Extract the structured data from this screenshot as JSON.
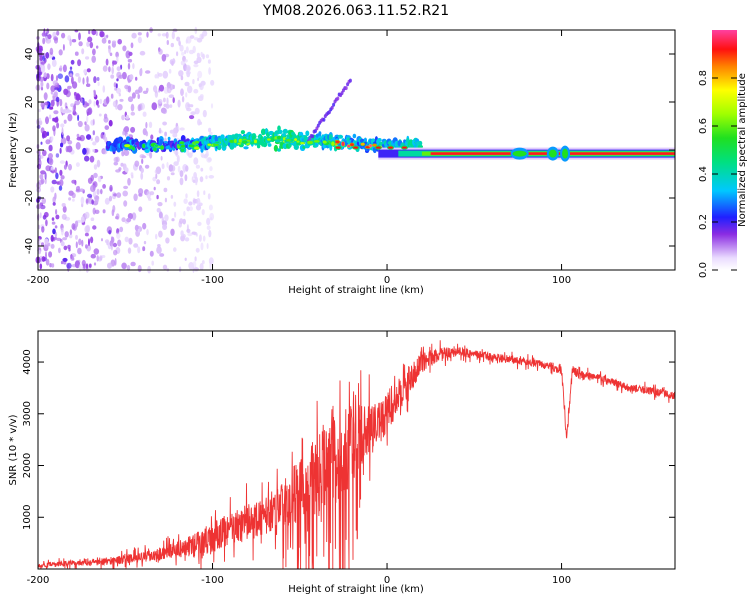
{
  "title": "YM08.2026.063.11.52.R21",
  "chart_data": [
    {
      "type": "heatmap",
      "title": "",
      "xlabel": "Height of straight line (km)",
      "ylabel": "Frequency (Hz)",
      "xlim": [
        -200,
        165
      ],
      "ylim": [
        -50,
        50
      ],
      "xticks": [
        "-200",
        "-100",
        "0",
        "100"
      ],
      "yticks": [
        "40",
        "20",
        "0",
        "-20",
        "-40"
      ],
      "colorbar": {
        "label": "Normalized spectral amplitude",
        "range": [
          0,
          1
        ],
        "ticks": [
          "0.0",
          "0.2",
          "0.4",
          "0.6",
          "0.8"
        ]
      },
      "features": {
        "noise_region_x": [
          -200,
          -110
        ],
        "signal_band_x": [
          -160,
          165
        ],
        "signal_frequency": 0,
        "strong_line_start_x": 20,
        "branch_start_x": -45,
        "branch_end_frequency": 25
      }
    },
    {
      "type": "line",
      "title": "",
      "xlabel": "Height of straight line (km)",
      "ylabel": "SNR (10 * v/v)",
      "xlim": [
        -200,
        165
      ],
      "ylim": [
        0,
        4600
      ],
      "xticks": [
        "-200",
        "-100",
        "0",
        "100"
      ],
      "yticks": [
        "1000",
        "2000",
        "3000",
        "4000"
      ],
      "color": "#ee3333",
      "series": [
        {
          "name": "SNR",
          "x": [
            -200,
            -180,
            -160,
            -140,
            -120,
            -105,
            -95,
            -80,
            -70,
            -60,
            -50,
            -40,
            -30,
            -20,
            -15,
            -10,
            -5,
            0,
            10,
            20,
            30,
            40,
            50,
            60,
            70,
            80,
            90,
            100,
            103,
            106,
            110,
            120,
            130,
            140,
            150,
            165
          ],
          "value": [
            60,
            120,
            150,
            230,
            380,
            500,
            700,
            900,
            1000,
            1300,
            1500,
            1800,
            2100,
            2400,
            2600,
            2700,
            2800,
            3050,
            3500,
            4000,
            4150,
            4200,
            4150,
            4100,
            4050,
            4000,
            3950,
            3850,
            2500,
            3850,
            3750,
            3700,
            3600,
            3500,
            3450,
            3350
          ],
          "spread": [
            80,
            120,
            150,
            200,
            300,
            600,
            600,
            700,
            700,
            1000,
            1200,
            1600,
            1800,
            1600,
            1200,
            1000,
            900,
            800,
            600,
            400,
            250,
            180,
            160,
            160,
            150,
            150,
            150,
            200,
            300,
            200,
            180,
            150,
            150,
            150,
            150,
            150
          ]
        }
      ]
    }
  ]
}
